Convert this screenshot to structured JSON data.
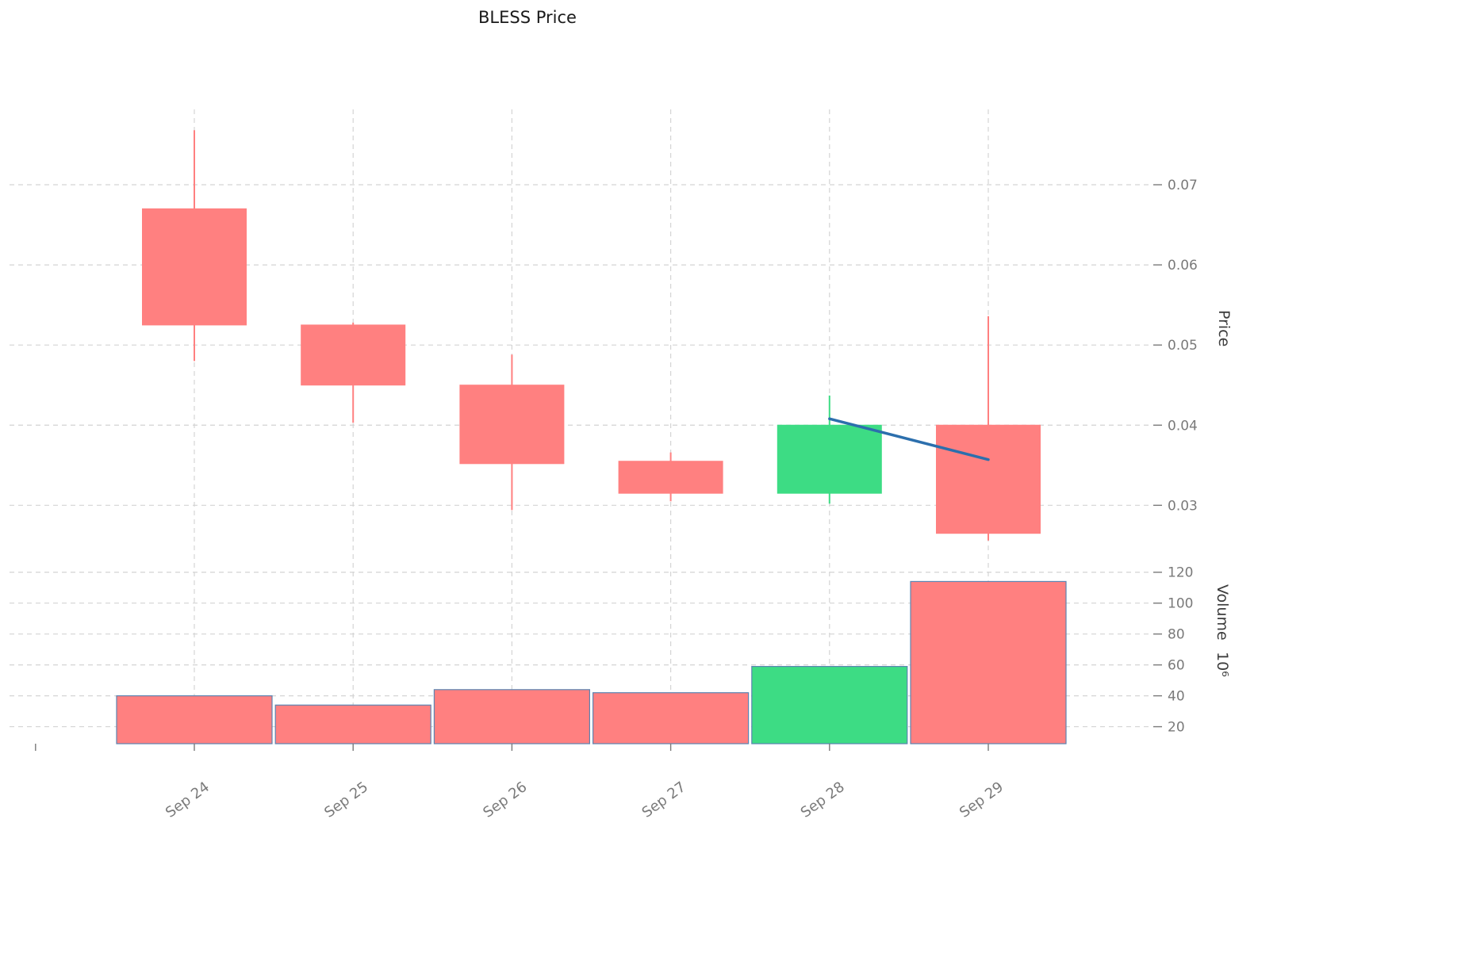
{
  "chart_data": {
    "type": "candlestick",
    "title": "BLESS Price",
    "categories": [
      "Sep 24",
      "Sep 25",
      "Sep 26",
      "Sep 27",
      "Sep 28",
      "Sep 29"
    ],
    "candles": [
      {
        "date": "Sep 24",
        "open": 0.067,
        "high": 0.0768,
        "low": 0.048,
        "close": 0.0525,
        "direction": "down"
      },
      {
        "date": "Sep 25",
        "open": 0.0525,
        "high": 0.0528,
        "low": 0.0403,
        "close": 0.045,
        "direction": "down"
      },
      {
        "date": "Sep 26",
        "open": 0.045,
        "high": 0.0488,
        "low": 0.0294,
        "close": 0.0352,
        "direction": "down"
      },
      {
        "date": "Sep 27",
        "open": 0.0355,
        "high": 0.0366,
        "low": 0.0305,
        "close": 0.0315,
        "direction": "down"
      },
      {
        "date": "Sep 28",
        "open": 0.0315,
        "high": 0.0437,
        "low": 0.0302,
        "close": 0.04,
        "direction": "up"
      },
      {
        "date": "Sep 29",
        "open": 0.04,
        "high": 0.0536,
        "low": 0.0256,
        "close": 0.0265,
        "direction": "down"
      }
    ],
    "volume": {
      "values": [
        40,
        34,
        44,
        42,
        59,
        114
      ],
      "unit": "1e6"
    },
    "trend_line": {
      "x": [
        "Sep 28",
        "Sep 29"
      ],
      "y": [
        0.0408,
        0.0357
      ]
    },
    "price_axis": {
      "label": "Price",
      "ticks": [
        0.03,
        0.04,
        0.05,
        0.06,
        0.07
      ],
      "range": [
        0.0238,
        0.0794
      ]
    },
    "volume_axis": {
      "label": "Volume",
      "unit_superscript": "10⁶",
      "ticks": [
        20,
        40,
        60,
        80,
        100,
        120
      ],
      "range": [
        9,
        125
      ]
    },
    "colors": {
      "up": "#3ddc84",
      "down": "#ff8080",
      "volume_outline": "#5b84b1",
      "trend_line": "#2c6fad",
      "grid": "#d4d4d4",
      "tick_label": "#7a7a7a",
      "axis_label": "#3d3d3d",
      "title": "#1a1a1a"
    },
    "grid": true,
    "legend": false
  }
}
